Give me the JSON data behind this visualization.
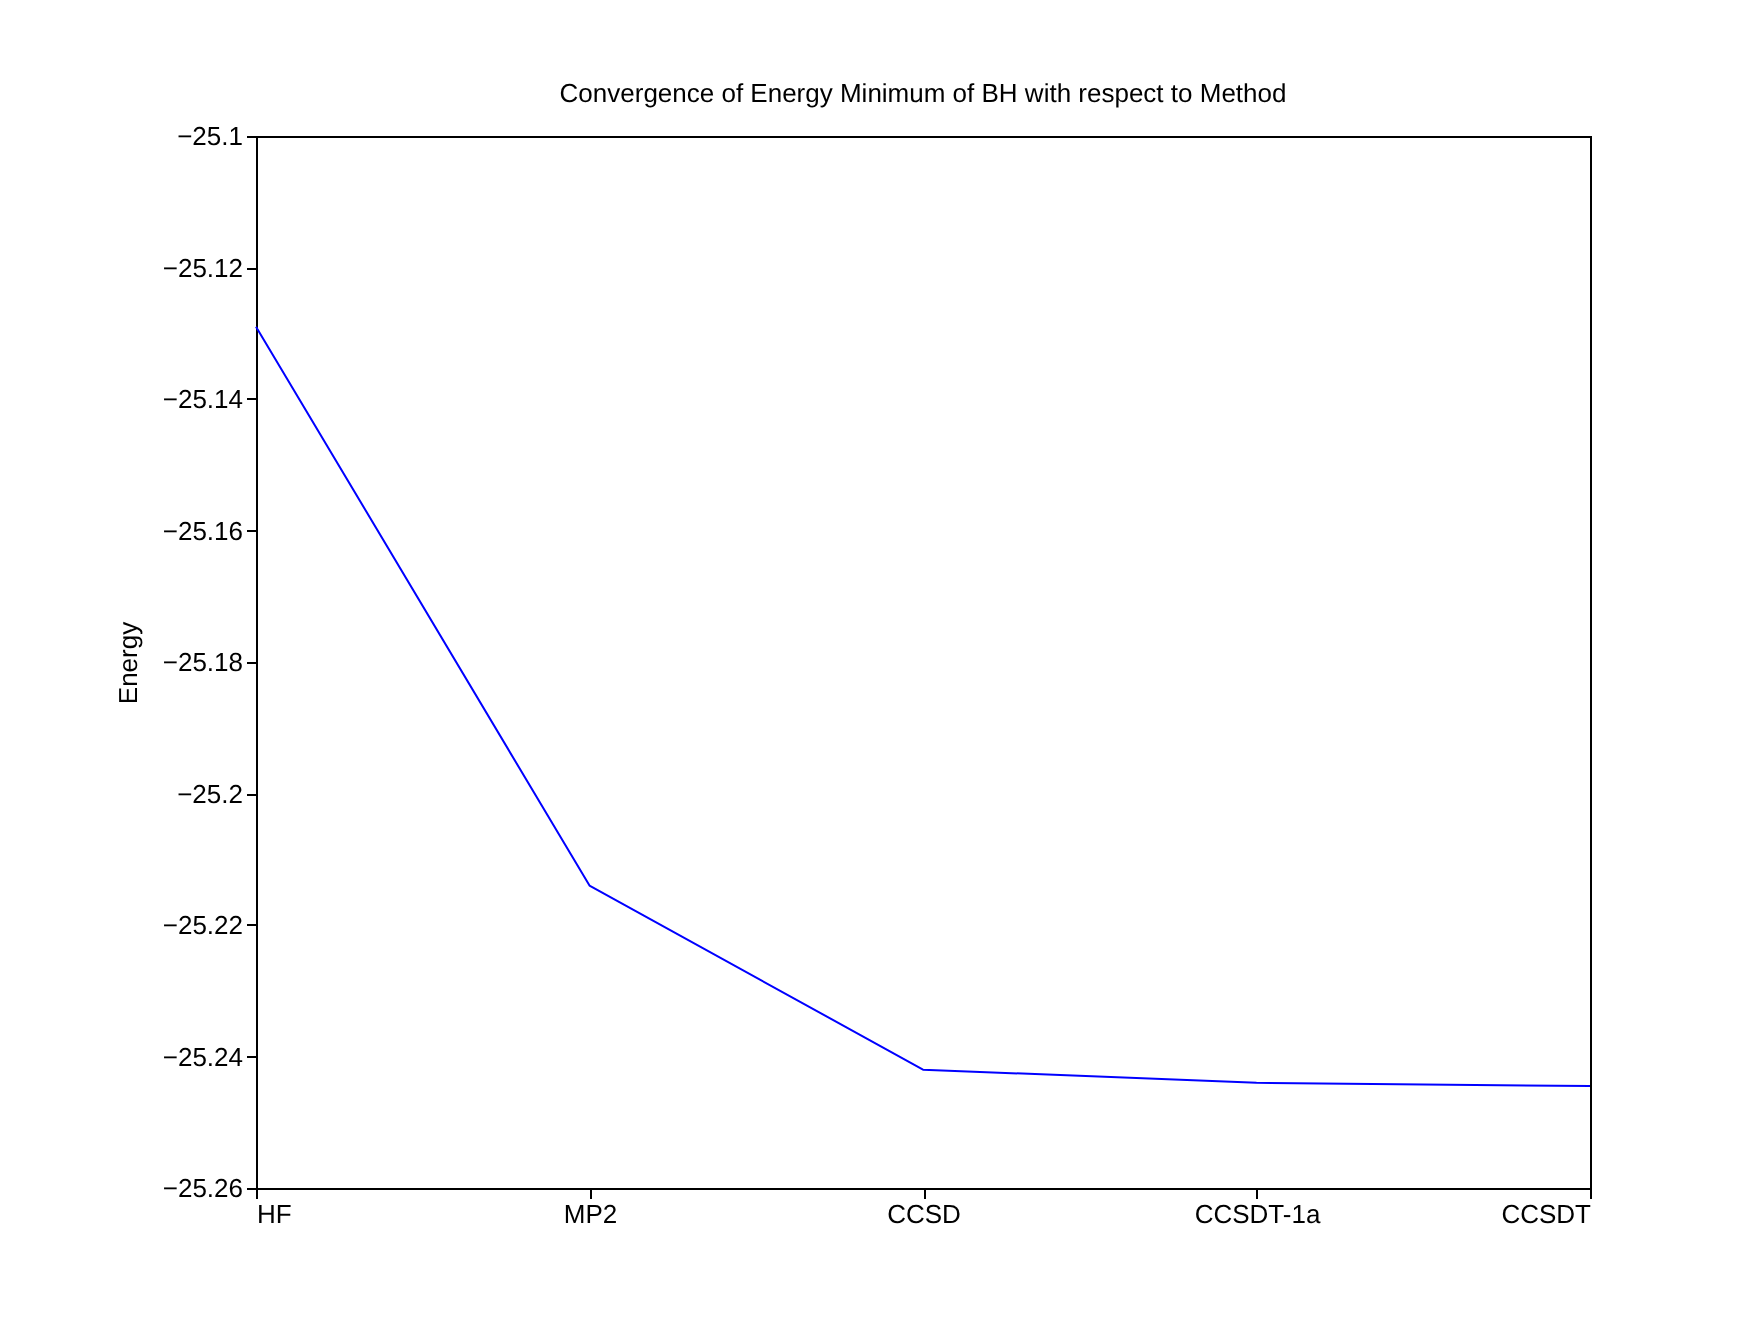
{
  "chart_data": {
    "type": "line",
    "title": "Convergence of Energy Minimum of BH with respect to Method",
    "ylabel": "Energy",
    "categories": [
      "HF",
      "MP2",
      "CCSD",
      "CCSDT-1a",
      "CCSDT"
    ],
    "series": [
      {
        "color": "#0000ff",
        "values": [
          -25.129,
          -25.214,
          -25.242,
          -25.244,
          -25.2445
        ]
      }
    ],
    "ylim": [
      -25.26,
      -25.1
    ],
    "yticks": [
      -25.26,
      -25.24,
      -25.22,
      -25.2,
      -25.18,
      -25.16,
      -25.14,
      -25.12,
      -25.1
    ],
    "grid": false,
    "legend": false,
    "marker": "none",
    "line_style": "solid"
  }
}
